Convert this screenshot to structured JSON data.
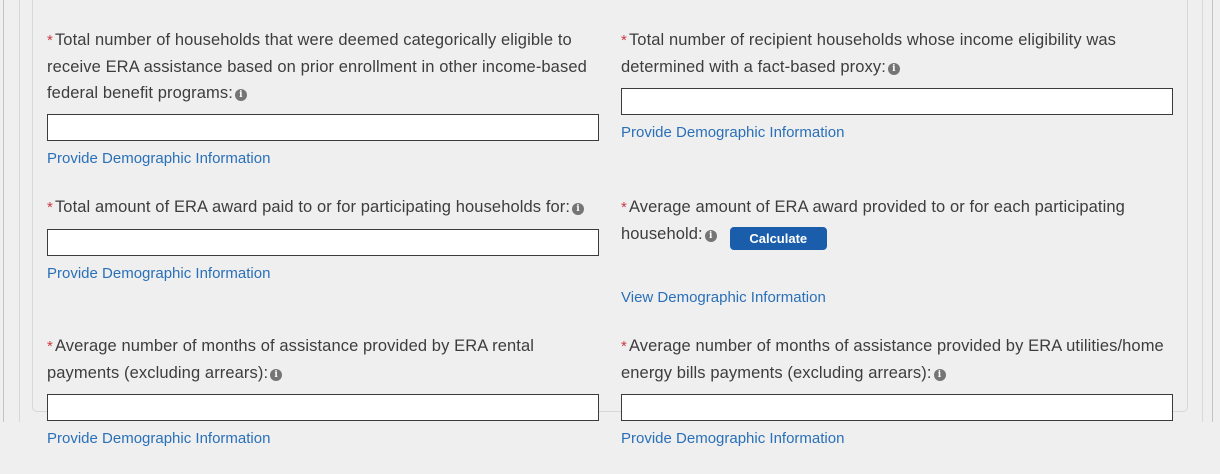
{
  "colors": {
    "background": "#efefef",
    "panel_border": "#d7d7d7",
    "label_text": "#3d3d3d",
    "required_asterisk": "#c93a44",
    "link": "#2a70b8",
    "button_bg": "#1a5dab",
    "button_text": "#ffffff",
    "input_border": "#3b3b3b",
    "info_icon_bg": "#757575"
  },
  "icons": {
    "info_glyph": "i"
  },
  "required_mark": "*",
  "fields": [
    {
      "label": "Total number of households that were deemed categorically eligible to receive ERA assistance based on prior enrollment in other income-based federal benefit programs:",
      "value": "",
      "link": "Provide Demographic Information"
    },
    {
      "label": "Total number of recipient households whose income eligibility was determined with a fact-based proxy:",
      "value": "",
      "link": "Provide Demographic Information"
    },
    {
      "label": "Total amount of ERA award paid to or for participating households for:",
      "value": "",
      "link": "Provide Demographic Information"
    },
    {
      "label": "Average amount of ERA award provided to or for each participating household:",
      "button_label": "Calculate",
      "link": "View Demographic Information"
    },
    {
      "label": "Average number of months of assistance provided by ERA rental payments (excluding arrears):",
      "value": "",
      "link": "Provide Demographic Information"
    },
    {
      "label": "Average number of months of assistance provided by ERA utilities/home energy bills payments (excluding arrears):",
      "value": "",
      "link": "Provide Demographic Information"
    }
  ]
}
